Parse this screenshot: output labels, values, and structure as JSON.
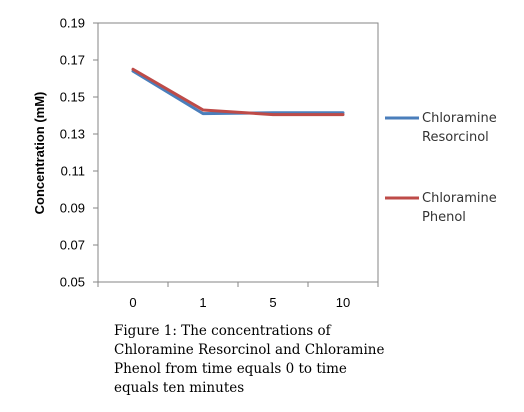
{
  "chart_data": {
    "type": "line",
    "categories": [
      "0",
      "1",
      "5",
      "10"
    ],
    "series": [
      {
        "name_lines": [
          "Chloramine",
          "Resorcinol"
        ],
        "color": "#4a7ebb",
        "values": [
          0.164,
          0.141,
          0.1415,
          0.1415
        ]
      },
      {
        "name_lines": [
          "Chloramine",
          "Phenol"
        ],
        "color": "#be4b48",
        "values": [
          0.165,
          0.143,
          0.1405,
          0.1405
        ]
      }
    ],
    "ylabel": "Concentration (mM)",
    "ylim": [
      0.05,
      0.19
    ],
    "yticks": [
      "0.19",
      "0.17",
      "0.15",
      "0.13",
      "0.11",
      "0.09",
      "0.07",
      "0.05"
    ],
    "legend_position": "right",
    "grid": false
  },
  "caption_lines": [
    "Figure 1: The concentrations of",
    "Chloramine Resorcinol and Chloramine",
    "Phenol from time equals 0 to time",
    "equals ten minutes"
  ]
}
